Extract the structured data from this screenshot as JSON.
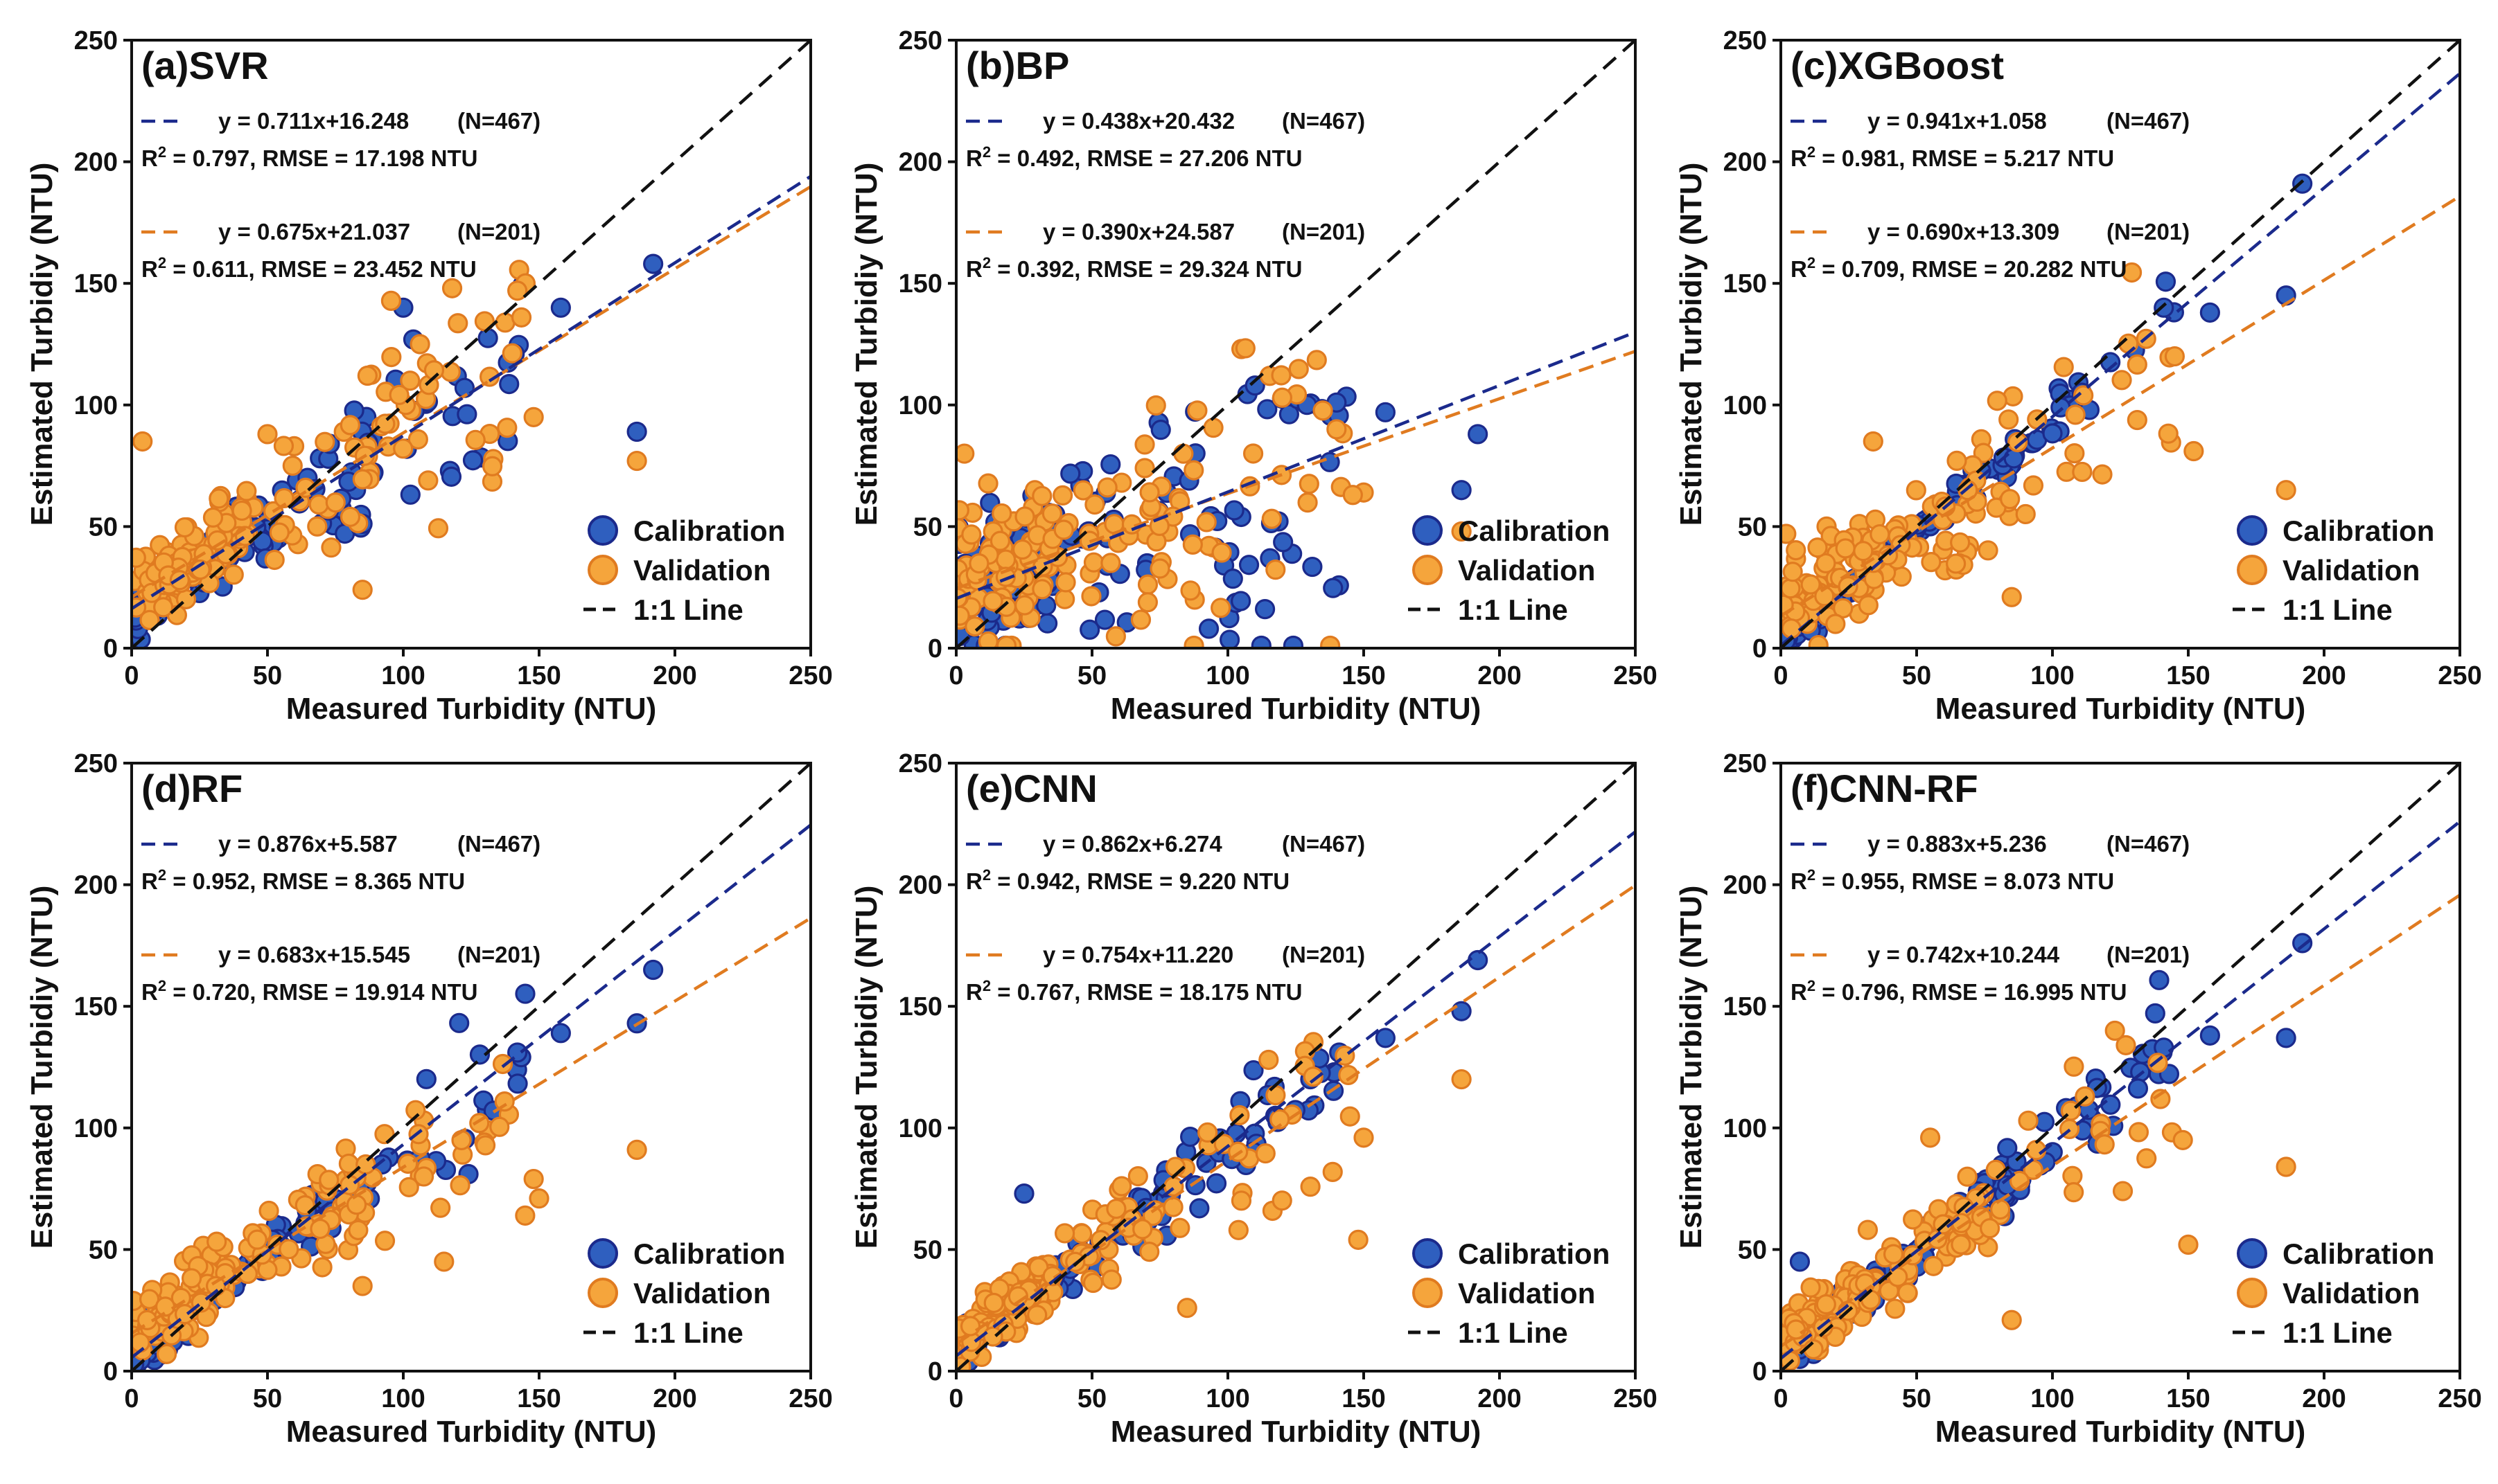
{
  "chart_data": {
    "type": "scatter",
    "colors": {
      "calibration_fill": "#2f5fbf",
      "calibration_edge": "#1b2a8c",
      "validation_fill": "#f5a53c",
      "validation_edge": "#e07b20",
      "one_to_one": "#111111",
      "calibration_line": "#1b2a8c",
      "validation_line": "#e07b20"
    },
    "legend": {
      "calibration": "Calibration",
      "validation": "Validation",
      "one_to_one": "1:1 Line",
      "placement": "bottom-right"
    },
    "xlabel": "Measured Turbidity (NTU)",
    "ylabel": "Estimated Turbidiy (NTU)",
    "xlim": [
      0,
      250
    ],
    "ylim": [
      0,
      250
    ],
    "ticks": [
      0,
      50,
      100,
      150,
      200,
      250
    ],
    "panels": [
      {
        "title": "(a)SVR",
        "calibration": {
          "slope": 0.711,
          "intercept": 16.248,
          "eq": "y = 0.711x+16.248",
          "n": "(N=467)",
          "r2": "0.797",
          "rmse": ", RMSE = 17.198 NTU"
        },
        "validation": {
          "slope": 0.675,
          "intercept": 21.037,
          "eq": "y = 0.675x+21.037",
          "n": "(N=201)",
          "r2": "0.611",
          "rmse": ", RMSE = 23.452 NTU"
        },
        "outliers_cal": [
          [
            192,
            158
          ],
          [
            186,
            89
          ],
          [
            158,
            140
          ],
          [
            141,
            121
          ],
          [
            100,
            140
          ]
        ],
        "outliers_val": [
          [
            186,
            77
          ],
          [
            148,
            95
          ],
          [
            145,
            150
          ],
          [
            142,
            147
          ],
          [
            118,
            148
          ],
          [
            85,
            24
          ],
          [
            4,
            85
          ],
          [
            50,
            88
          ]
        ]
      },
      {
        "title": "(b)BP",
        "calibration": {
          "slope": 0.438,
          "intercept": 20.432,
          "eq": "y = 0.438x+20.432",
          "n": "(N=467)",
          "r2": "0.492",
          "rmse": ", RMSE = 27.206 NTU"
        },
        "validation": {
          "slope": 0.39,
          "intercept": 24.587,
          "eq": "y = 0.390x+24.587",
          "n": "(N=201)",
          "r2": "0.392",
          "rmse": ", RMSE = 29.324 NTU"
        },
        "outliers_cal": [
          [
            192,
            88
          ],
          [
            186,
            65
          ],
          [
            158,
            97
          ],
          [
            140,
            101
          ],
          [
            93,
            8
          ],
          [
            110,
            108
          ]
        ],
        "outliers_val": [
          [
            186,
            48
          ],
          [
            150,
            64
          ],
          [
            146,
            63
          ],
          [
            140,
            90
          ],
          [
            3,
            80
          ],
          [
            120,
            103
          ]
        ]
      },
      {
        "title": "(c)XGBoost",
        "calibration": {
          "slope": 0.941,
          "intercept": 1.058,
          "eq": "y = 0.941x+1.058",
          "n": "(N=467)",
          "r2": "0.981",
          "rmse": ", RMSE = 5.217 NTU"
        },
        "validation": {
          "slope": 0.69,
          "intercept": 13.309,
          "eq": "y = 0.690x+13.309",
          "n": "(N=201)",
          "r2": "0.709",
          "rmse": ", RMSE = 20.282 NTU"
        },
        "outliers_cal": [
          [
            192,
            191
          ],
          [
            186,
            145
          ],
          [
            158,
            138
          ],
          [
            141,
            140
          ]
        ],
        "outliers_val": [
          [
            186,
            65
          ],
          [
            152,
            81
          ],
          [
            145,
            120
          ],
          [
            85,
            21
          ],
          [
            34,
            85
          ],
          [
            2,
            47
          ]
        ]
      },
      {
        "title": "(d)RF",
        "calibration": {
          "slope": 0.876,
          "intercept": 5.587,
          "eq": "y = 0.876x+5.587",
          "n": "(N=467)",
          "r2": "0.952",
          "rmse": ", RMSE = 8.365 NTU"
        },
        "validation": {
          "slope": 0.683,
          "intercept": 15.545,
          "eq": "y = 0.683x+15.545",
          "n": "(N=201)",
          "r2": "0.720",
          "rmse": ", RMSE = 19.914 NTU"
        },
        "outliers_cal": [
          [
            192,
            165
          ],
          [
            186,
            143
          ],
          [
            158,
            139
          ],
          [
            142,
            131
          ],
          [
            124,
            81
          ]
        ],
        "outliers_val": [
          [
            186,
            91
          ],
          [
            150,
            71
          ],
          [
            148,
            79
          ],
          [
            128,
            102
          ],
          [
            115,
            45
          ],
          [
            85,
            35
          ]
        ]
      },
      {
        "title": "(e)CNN",
        "calibration": {
          "slope": 0.862,
          "intercept": 6.274,
          "eq": "y = 0.862x+6.274",
          "n": "(N=467)",
          "r2": "0.942",
          "rmse": ", RMSE = 9.220 NTU"
        },
        "validation": {
          "slope": 0.754,
          "intercept": 11.22,
          "eq": "y = 0.754x+11.220",
          "n": "(N=201)",
          "r2": "0.767",
          "rmse": ", RMSE = 18.175 NTU"
        },
        "outliers_cal": [
          [
            192,
            169
          ],
          [
            186,
            148
          ],
          [
            158,
            137
          ],
          [
            141,
            131
          ],
          [
            25,
            73
          ]
        ],
        "outliers_val": [
          [
            186,
            120
          ],
          [
            150,
            96
          ],
          [
            148,
            54
          ],
          [
            85,
            26
          ],
          [
            115,
            128
          ]
        ]
      },
      {
        "title": "(f)CNN-RF",
        "calibration": {
          "slope": 0.883,
          "intercept": 5.236,
          "eq": "y = 0.883x+5.236",
          "n": "(N=467)",
          "r2": "0.955",
          "rmse": ", RMSE = 8.073 NTU"
        },
        "validation": {
          "slope": 0.742,
          "intercept": 10.244,
          "eq": "y = 0.742x+10.244",
          "n": "(N=201)",
          "r2": "0.796",
          "rmse": ", RMSE = 16.995 NTU"
        },
        "outliers_cal": [
          [
            192,
            176
          ],
          [
            186,
            137
          ],
          [
            158,
            138
          ],
          [
            141,
            133
          ],
          [
            7,
            45
          ]
        ],
        "outliers_val": [
          [
            186,
            84
          ],
          [
            150,
            52
          ],
          [
            148,
            95
          ],
          [
            85,
            21
          ],
          [
            55,
            96
          ]
        ]
      }
    ]
  }
}
